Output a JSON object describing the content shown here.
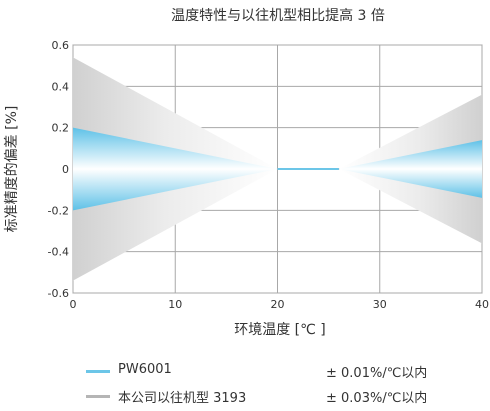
{
  "chart_data": {
    "type": "area",
    "title": "温度特性与以往机型相比提高 3 倍",
    "xlabel": "环境温度 [℃ ]",
    "ylabel": "标准精度的偏差 [%]",
    "xlim": [
      0,
      40
    ],
    "ylim": [
      -0.6,
      0.6
    ],
    "x_ticks": [
      "0",
      "10",
      "20",
      "30",
      "40"
    ],
    "y_ticks": [
      "0.6",
      "0.4",
      "0.2",
      "0",
      "-0.2",
      "-0.4",
      "-0.6"
    ],
    "grid": true,
    "legend_position": "bottom",
    "series": [
      {
        "name": "本公司以往机型 3193",
        "spec": "± 0.03%/℃以内",
        "color": "#b5b5b5",
        "x": [
          0,
          20,
          26,
          40
        ],
        "upper": [
          0.54,
          0,
          0,
          0.36
        ],
        "lower": [
          -0.54,
          0,
          0,
          -0.36
        ]
      },
      {
        "name": "PW6001",
        "spec": "± 0.01%/℃以内",
        "color": "#6cc6e8",
        "x": [
          0,
          20,
          26,
          40
        ],
        "upper": [
          0.2,
          0,
          0,
          0.14
        ],
        "lower": [
          -0.2,
          0,
          0,
          -0.14
        ]
      }
    ]
  }
}
